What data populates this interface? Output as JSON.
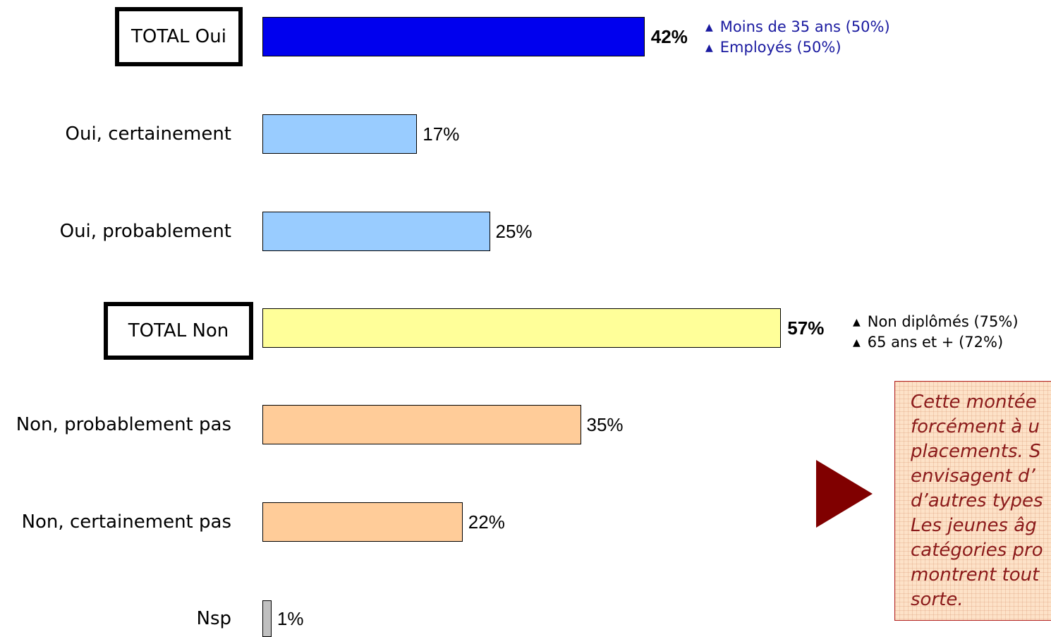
{
  "chart_data": {
    "type": "bar",
    "orientation": "horizontal",
    "categories": [
      "TOTAL Oui",
      "Oui, certainement",
      "Oui, probablement",
      "TOTAL Non",
      "Non, probablement pas",
      "Non, certainement pas",
      "Nsp"
    ],
    "values": [
      42,
      17,
      25,
      57,
      35,
      22,
      1
    ],
    "value_labels": [
      "42%",
      "17%",
      "25%",
      "57%",
      "35%",
      "22%",
      "1%"
    ],
    "colors": [
      "#0000ee",
      "#99ccff",
      "#99ccff",
      "#ffff99",
      "#ffcc99",
      "#ffcc99",
      "#c0c0c0"
    ],
    "xlim": [
      0,
      57
    ],
    "grid": false,
    "legend": "none"
  },
  "annotations": {
    "oui": [
      "Moins de 35 ans (50%)",
      "Employés (50%)"
    ],
    "non": [
      "Non diplômés (75%)",
      "65 ans et + (72%)"
    ],
    "marker": "▲",
    "oui_color": "#1a1aa0"
  },
  "commentary": {
    "text": "Cette montée\nforcément à u\nplacements. S\nenvisagent d’\nd’autres types\nLes jeunes âg\ncatégories pro\nmontrent tout\nsorte.",
    "arrow_icon": "play-triangle-icon"
  }
}
